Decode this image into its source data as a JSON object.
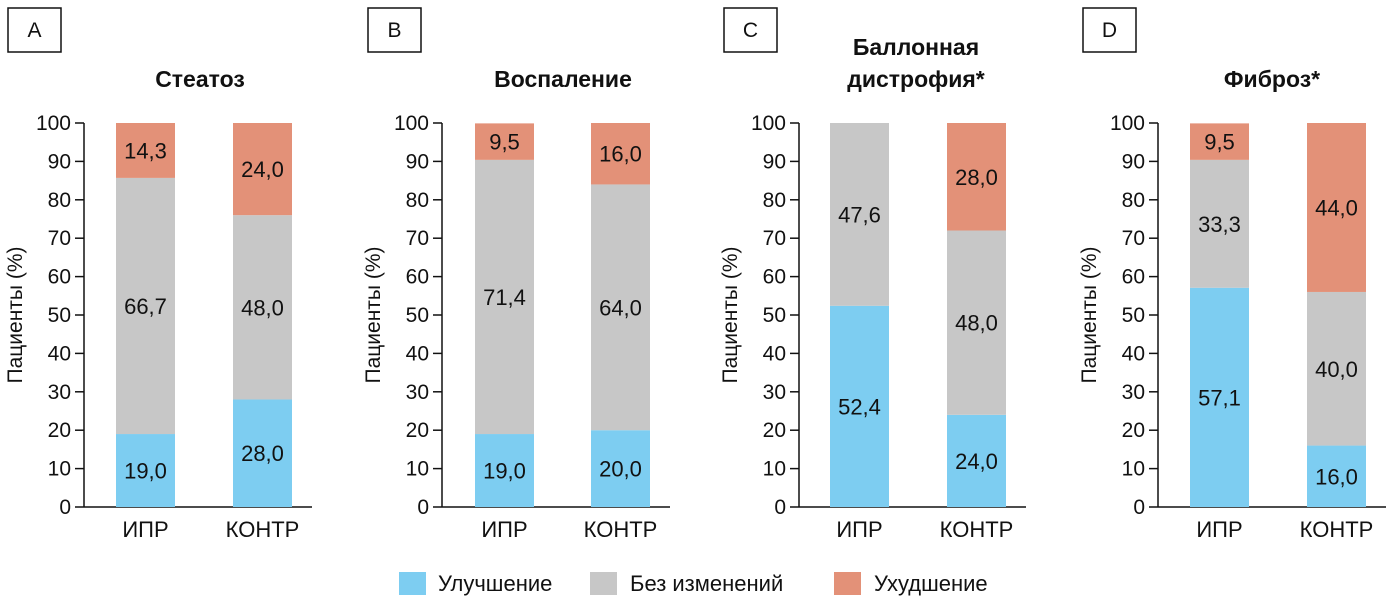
{
  "colors": {
    "improvement": "#7dcdf1",
    "no_change": "#c7c7c7",
    "worsening": "#e39178"
  },
  "chart_data": [
    {
      "type": "bar",
      "stacked": true,
      "panel": "A",
      "title": [
        "Стеатоз"
      ],
      "ylabel": "Пациенты (%)",
      "ylim": [
        0,
        100
      ],
      "yticks": [
        "0",
        "10",
        "20",
        "30",
        "40",
        "50",
        "60",
        "70",
        "80",
        "90",
        "100"
      ],
      "categories": [
        "ИПР",
        "КОНТР"
      ],
      "series": [
        {
          "name": "Улучшение",
          "values": [
            19.0,
            28.0
          ],
          "labels": [
            "19,0",
            "28,0"
          ]
        },
        {
          "name": "Без изменений",
          "values": [
            66.7,
            48.0
          ],
          "labels": [
            "66,7",
            "48,0"
          ]
        },
        {
          "name": "Ухудшение",
          "values": [
            14.3,
            24.0
          ],
          "labels": [
            "14,3",
            "24,0"
          ]
        }
      ]
    },
    {
      "type": "bar",
      "stacked": true,
      "panel": "B",
      "title": [
        "Воспаление"
      ],
      "ylabel": "Пациенты (%)",
      "ylim": [
        0,
        100
      ],
      "yticks": [
        "0",
        "10",
        "20",
        "30",
        "40",
        "50",
        "60",
        "70",
        "80",
        "90",
        "100"
      ],
      "categories": [
        "ИПР",
        "КОНТР"
      ],
      "series": [
        {
          "name": "Улучшение",
          "values": [
            19.0,
            20.0
          ],
          "labels": [
            "19,0",
            "20,0"
          ]
        },
        {
          "name": "Без изменений",
          "values": [
            71.4,
            64.0
          ],
          "labels": [
            "71,4",
            "64,0"
          ]
        },
        {
          "name": "Ухудшение",
          "values": [
            9.5,
            16.0
          ],
          "labels": [
            "9,5",
            "16,0"
          ]
        }
      ]
    },
    {
      "type": "bar",
      "stacked": true,
      "panel": "C",
      "title": [
        "Баллонная",
        "дистрофия*"
      ],
      "ylabel": "Пациенты (%)",
      "ylim": [
        0,
        100
      ],
      "yticks": [
        "0",
        "10",
        "20",
        "30",
        "40",
        "50",
        "60",
        "70",
        "80",
        "90",
        "100"
      ],
      "categories": [
        "ИПР",
        "КОНТР"
      ],
      "series": [
        {
          "name": "Улучшение",
          "values": [
            52.4,
            24.0
          ],
          "labels": [
            "52,4",
            "24,0"
          ]
        },
        {
          "name": "Без изменений",
          "values": [
            47.6,
            48.0
          ],
          "labels": [
            "47,6",
            "48,0"
          ]
        },
        {
          "name": "Ухудшение",
          "values": [
            0,
            28.0
          ],
          "labels": [
            "",
            "28,0"
          ]
        }
      ]
    },
    {
      "type": "bar",
      "stacked": true,
      "panel": "D",
      "title": [
        "Фиброз*"
      ],
      "ylabel": "Пациенты (%)",
      "ylim": [
        0,
        100
      ],
      "yticks": [
        "0",
        "10",
        "20",
        "30",
        "40",
        "50",
        "60",
        "70",
        "80",
        "90",
        "100"
      ],
      "categories": [
        "ИПР",
        "КОНТР"
      ],
      "series": [
        {
          "name": "Улучшение",
          "values": [
            57.1,
            16.0
          ],
          "labels": [
            "57,1",
            "16,0"
          ]
        },
        {
          "name": "Без изменений",
          "values": [
            33.3,
            40.0
          ],
          "labels": [
            "33,3",
            "40,0"
          ]
        },
        {
          "name": "Ухудшение",
          "values": [
            9.5,
            44.0
          ],
          "labels": [
            "9,5",
            "44,0"
          ]
        }
      ]
    }
  ],
  "legend": {
    "placement": "bottom-center",
    "items": [
      {
        "label": "Улучшение",
        "color_key": "improvement"
      },
      {
        "label": "Без изменений",
        "color_key": "no_change"
      },
      {
        "label": "Ухудшение",
        "color_key": "worsening"
      }
    ]
  }
}
